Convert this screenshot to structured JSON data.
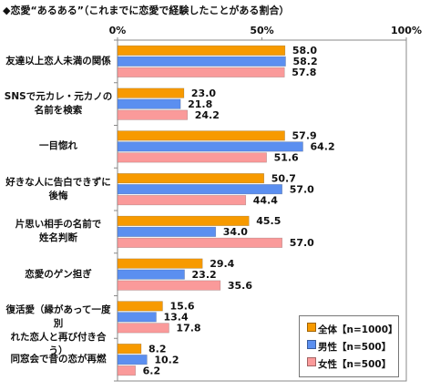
{
  "title": "◆恋愛“あるある”（これまでに恋愛で経験したことがある割合）",
  "chart_data": {
    "type": "bar",
    "orientation": "horizontal",
    "title": "◆恋愛“あるある”（これまでに恋愛で経験したことがある割合）",
    "categories": [
      [
        "友達以上恋人未満の関係"
      ],
      [
        "SNSで元カレ・元カノの",
        "名前を検索"
      ],
      [
        "一目惚れ"
      ],
      [
        "好きな人に告白できずに",
        "後悔"
      ],
      [
        "片思い相手の名前で",
        "姓名判断"
      ],
      [
        "恋愛のゲン担ぎ"
      ],
      [
        "復活愛（縁があって一度別",
        "れた恋人と再び付き合う）"
      ],
      [
        "同窓会で昔の恋が再燃"
      ]
    ],
    "series": [
      {
        "name": "全体【n=1000】",
        "color": "#f79a00",
        "values": [
          58.0,
          23.0,
          57.9,
          50.7,
          45.5,
          29.4,
          15.6,
          8.2
        ]
      },
      {
        "name": "男性【n=500】",
        "color": "#5b8ff0",
        "values": [
          58.2,
          21.8,
          64.2,
          57.0,
          34.0,
          23.2,
          13.4,
          10.2
        ]
      },
      {
        "name": "女性【n=500】",
        "color": "#fa9a9a",
        "values": [
          57.8,
          24.2,
          51.6,
          44.4,
          57.0,
          35.6,
          17.8,
          6.2
        ]
      }
    ],
    "xlim": [
      0,
      100
    ],
    "xticks": [
      "0%",
      "50%",
      "100%"
    ],
    "grid": false,
    "legend_position": "bottom-right"
  }
}
